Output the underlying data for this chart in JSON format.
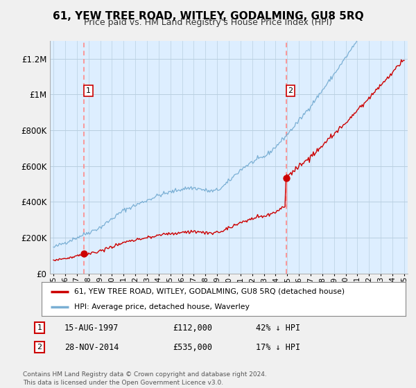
{
  "title": "61, YEW TREE ROAD, WITLEY, GODALMING, GU8 5RQ",
  "subtitle": "Price paid vs. HM Land Registry's House Price Index (HPI)",
  "ylim": [
    0,
    1300000
  ],
  "yticks": [
    0,
    200000,
    400000,
    600000,
    800000,
    1000000,
    1200000
  ],
  "ytick_labels": [
    "£0",
    "£200K",
    "£400K",
    "£600K",
    "£800K",
    "£1M",
    "£1.2M"
  ],
  "sale1_year": 1997.625,
  "sale1_price": 112000,
  "sale2_year": 2014.917,
  "sale2_price": 535000,
  "legend_line1": "61, YEW TREE ROAD, WITLEY, GODALMING, GU8 5RQ (detached house)",
  "legend_line2": "HPI: Average price, detached house, Waverley",
  "table_row1": [
    "1",
    "15-AUG-1997",
    "£112,000",
    "42% ↓ HPI"
  ],
  "table_row2": [
    "2",
    "28-NOV-2014",
    "£535,000",
    "17% ↓ HPI"
  ],
  "footer": "Contains HM Land Registry data © Crown copyright and database right 2024.\nThis data is licensed under the Open Government Licence v3.0.",
  "line_color_red": "#cc0000",
  "line_color_blue": "#7aafd4",
  "background_color": "#f0f0f0",
  "plot_bg_color": "#ddeeff",
  "dashed_line_color": "#ff8888",
  "grid_color": "#b8cfe0",
  "title_fontsize": 11,
  "subtitle_fontsize": 9
}
